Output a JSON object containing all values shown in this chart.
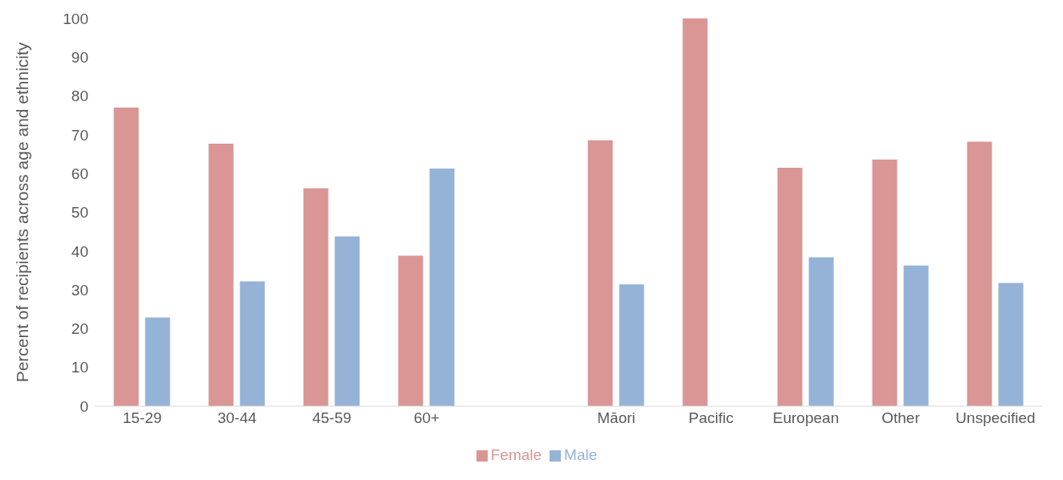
{
  "chart_data": {
    "type": "bar",
    "ylabel": "Percent of recipients across age and ethnicity",
    "categories": [
      "15-29",
      "30-44",
      "45-59",
      "60+",
      null,
      "Māori",
      "Pacific",
      "European",
      "Other",
      "Unspecified"
    ],
    "series": [
      {
        "name": "Female",
        "color": "#d99694",
        "values": [
          77.0,
          67.7,
          56.2,
          38.8,
          null,
          68.6,
          100,
          61.5,
          63.6,
          68.2
        ]
      },
      {
        "name": "Male",
        "color": "#95b3d7",
        "values": [
          22.9,
          32.2,
          43.8,
          61.3,
          null,
          31.4,
          0,
          38.4,
          36.3,
          31.8
        ]
      }
    ],
    "ylim": [
      0,
      100
    ],
    "yticks": [
      0,
      10,
      20,
      30,
      40,
      50,
      60,
      70,
      80,
      90,
      100
    ],
    "grid": false,
    "legend": "bottom"
  }
}
